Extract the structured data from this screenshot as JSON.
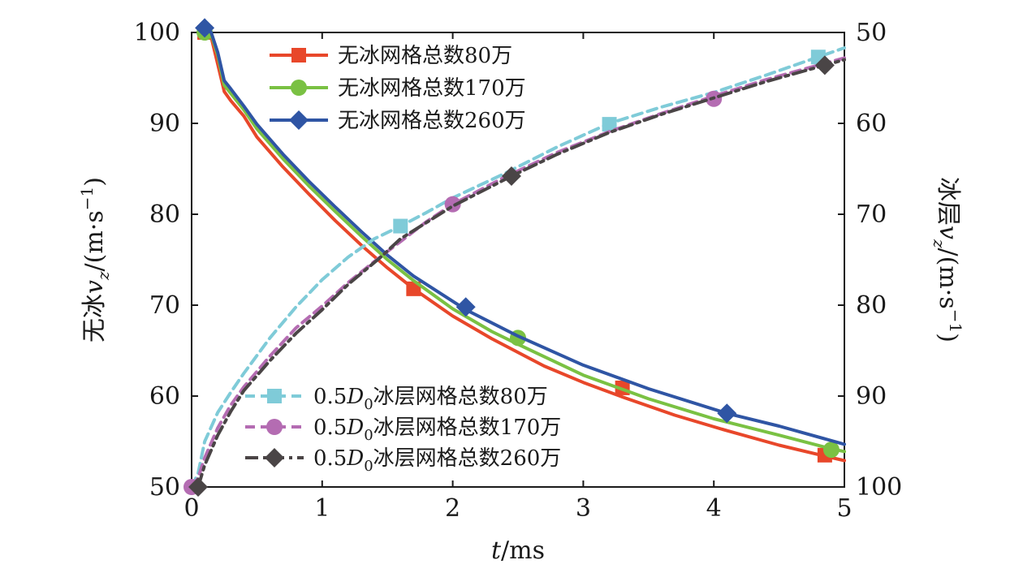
{
  "chart_data": {
    "type": "line",
    "xlabel": {
      "var": "t",
      "unit": "/ms"
    },
    "ylabel_left": {
      "prefix": "无冰",
      "var": "v",
      "sub": "z",
      "unit": "/(m·s",
      "sup": "−1",
      "close": ")"
    },
    "ylabel_right": {
      "prefix": "冰层",
      "var": "v",
      "sub": "z",
      "unit": "/(m·s",
      "sup": "−1",
      "close": ")"
    },
    "xlim": [
      0,
      5
    ],
    "ylim_left": [
      50,
      100
    ],
    "ylim_right": [
      100,
      50
    ],
    "right_axis_inverted": true,
    "x_ticks": [
      "0",
      "1",
      "2",
      "3",
      "4",
      "5"
    ],
    "y_ticks_left": [
      "50",
      "60",
      "70",
      "80",
      "90",
      "100"
    ],
    "y_ticks_right": [
      "100",
      "90",
      "80",
      "70",
      "60",
      "50"
    ],
    "grid": false,
    "series": [
      {
        "name": "无冰网格总数80万",
        "axis": "left",
        "color": "#e8472a",
        "marker": "square",
        "dash": "solid",
        "x": [
          0.1,
          0.15,
          0.2,
          0.25,
          0.3,
          0.4,
          0.5,
          0.7,
          0.9,
          1.1,
          1.3,
          1.5,
          1.7,
          2.0,
          2.3,
          2.7,
          3.0,
          3.3,
          3.7,
          4.1,
          4.5,
          4.85,
          5.0
        ],
        "y": [
          100.3,
          99.5,
          96.5,
          93.5,
          92.5,
          90.8,
          88.5,
          85.2,
          82.2,
          79.3,
          76.6,
          74.1,
          71.8,
          68.8,
          66.3,
          63.3,
          61.5,
          59.9,
          57.9,
          56.2,
          54.6,
          53.4,
          52.9
        ],
        "markers_x": [
          0.1,
          1.7,
          3.3,
          4.85
        ],
        "markers_y": [
          100.0,
          71.8,
          60.9,
          53.5
        ]
      },
      {
        "name": "无冰网格总数170万",
        "axis": "left",
        "color": "#7ac143",
        "marker": "circle",
        "dash": "solid",
        "x": [
          0.1,
          0.15,
          0.2,
          0.25,
          0.3,
          0.4,
          0.5,
          0.7,
          0.9,
          1.1,
          1.3,
          1.5,
          1.7,
          2.0,
          2.3,
          2.5,
          3.0,
          3.5,
          4.0,
          4.5,
          4.9,
          5.0
        ],
        "y": [
          100.4,
          99.8,
          97.5,
          94.2,
          93.3,
          91.5,
          89.4,
          86.1,
          83.1,
          80.3,
          77.6,
          75.0,
          72.7,
          69.6,
          67.1,
          65.7,
          62.3,
          59.7,
          57.5,
          55.7,
          54.2,
          53.9
        ],
        "markers_x": [
          0.1,
          2.5,
          4.9
        ],
        "markers_y": [
          100.0,
          66.4,
          54.1
        ]
      },
      {
        "name": "无冰网格总数260万",
        "axis": "left",
        "color": "#2f55a4",
        "marker": "diamond",
        "dash": "solid",
        "x": [
          0.1,
          0.15,
          0.2,
          0.25,
          0.3,
          0.4,
          0.5,
          0.7,
          0.9,
          1.1,
          1.3,
          1.5,
          1.7,
          2.1,
          2.5,
          3.0,
          3.5,
          4.1,
          4.5,
          5.0
        ],
        "y": [
          100.6,
          100.0,
          97.8,
          94.7,
          93.8,
          91.9,
          89.9,
          86.6,
          83.6,
          80.8,
          78.1,
          75.5,
          73.2,
          69.5,
          66.6,
          63.4,
          60.8,
          58.1,
          56.7,
          54.7
        ],
        "markers_x": [
          0.1,
          2.1,
          4.1
        ],
        "markers_y": [
          100.5,
          69.8,
          58.1
        ]
      },
      {
        "name": "0.5D0冰层网格总数80万",
        "label": {
          "prefix": "0.5",
          "var": "D",
          "sub": "0",
          "suffix": "冰层网格总数80万"
        },
        "axis": "right",
        "color": "#7fcbd8",
        "marker": "square",
        "dash": "dashed",
        "x": [
          0.0,
          0.05,
          0.1,
          0.2,
          0.3,
          0.4,
          0.6,
          0.8,
          1.0,
          1.2,
          1.4,
          1.6,
          1.8,
          2.0,
          2.4,
          2.8,
          3.2,
          3.6,
          4.0,
          4.4,
          4.8,
          5.0
        ],
        "y": [
          100.0,
          98.5,
          95.0,
          91.8,
          89.6,
          87.5,
          83.6,
          80.2,
          77.2,
          74.7,
          72.7,
          71.3,
          69.8,
          68.2,
          65.5,
          62.6,
          60.0,
          58.2,
          56.6,
          54.7,
          52.7,
          51.7
        ],
        "markers_x": [
          1.6,
          3.2,
          4.8
        ],
        "markers_y": [
          71.3,
          60.1,
          52.7
        ]
      },
      {
        "name": "0.5D0冰层网格总数170万",
        "label": {
          "prefix": "0.5",
          "var": "D",
          "sub": "0",
          "suffix": "冰层网格总数170万"
        },
        "axis": "right",
        "color": "#b46cb2",
        "marker": "circle",
        "dash": "dashed",
        "x": [
          0.0,
          0.05,
          0.1,
          0.2,
          0.3,
          0.4,
          0.6,
          0.8,
          1.0,
          1.2,
          1.4,
          1.6,
          1.8,
          2.0,
          2.4,
          2.8,
          3.2,
          3.6,
          4.0,
          4.4,
          4.8,
          5.0
        ],
        "y": [
          100.0,
          99.0,
          96.8,
          93.5,
          91.0,
          89.0,
          85.6,
          82.5,
          80.1,
          77.5,
          75.2,
          73.0,
          70.8,
          68.9,
          65.9,
          63.2,
          60.9,
          58.9,
          57.0,
          55.2,
          53.6,
          52.8
        ],
        "markers_x": [
          0.0,
          2.0,
          4.0
        ],
        "markers_y": [
          100.0,
          68.9,
          57.3
        ]
      },
      {
        "name": "0.5D0冰层网格总数260万",
        "label": {
          "prefix": "0.5",
          "var": "D",
          "sub": "0",
          "suffix": "冰层网格总数260万"
        },
        "axis": "right",
        "color": "#4a4546",
        "marker": "diamond",
        "dash": "dashdot",
        "x": [
          0.05,
          0.1,
          0.2,
          0.3,
          0.4,
          0.6,
          0.8,
          1.0,
          1.2,
          1.45,
          1.6,
          1.8,
          2.0,
          2.45,
          2.8,
          3.2,
          3.6,
          4.0,
          4.4,
          4.85,
          5.0
        ],
        "y": [
          100.0,
          97.6,
          94.3,
          91.7,
          89.4,
          86.1,
          83.1,
          80.5,
          77.7,
          74.7,
          72.7,
          70.9,
          69.1,
          65.8,
          63.4,
          61.0,
          59.0,
          57.2,
          55.4,
          53.6,
          53.0
        ],
        "markers_x": [
          0.05,
          2.45,
          4.85
        ],
        "markers_y": [
          100.0,
          65.8,
          53.6
        ]
      }
    ]
  }
}
